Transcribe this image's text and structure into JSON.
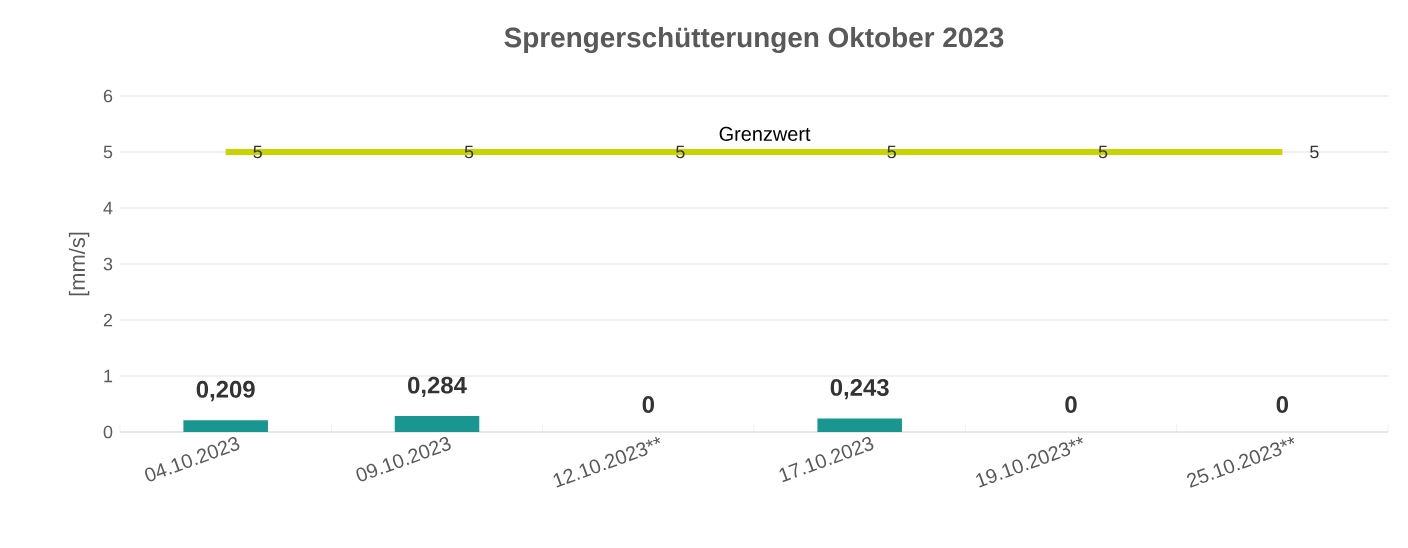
{
  "chart_data": {
    "type": "bar",
    "title": "Sprengerschütterungen Oktober 2023",
    "ylabel": "[mm/s]",
    "categories": [
      "04.10.2023",
      "09.10.2023",
      "12.10.2023**",
      "17.10.2023",
      "19.10.2023**",
      "25.10.2023**"
    ],
    "series": [
      {
        "color": "#1a9690",
        "values": [
          0.209,
          0.284,
          0,
          0.243,
          0,
          0
        ],
        "value_labels": [
          "0,209",
          "0,284",
          "0",
          "0,243",
          "0",
          "0"
        ]
      },
      {
        "type": "line",
        "name": "Grenzwert",
        "color": "#c8d400",
        "values": [
          5,
          5,
          5,
          5,
          5,
          5
        ],
        "value_labels": [
          "5",
          "5",
          "5",
          "5",
          "5",
          "5"
        ]
      }
    ],
    "ylim": [
      0,
      6
    ],
    "yticks": [
      0,
      1,
      2,
      3,
      4,
      5,
      6
    ],
    "grid": "y"
  }
}
